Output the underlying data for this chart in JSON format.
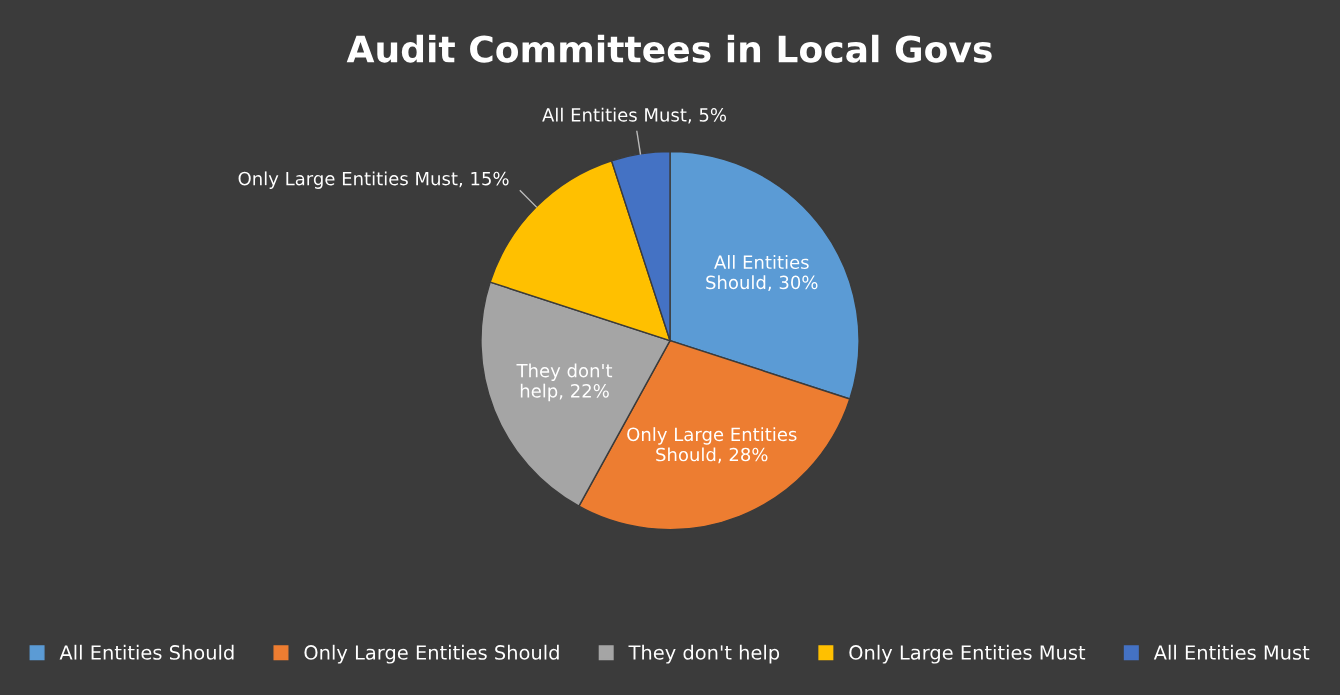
{
  "chart_data": {
    "type": "pie",
    "title": "Audit Committees in Local Govs",
    "categories": [
      "All Entities Should",
      "Only Large Entities Should",
      "They don't help",
      "Only Large Entities Must",
      "All Entities Must"
    ],
    "values": [
      30,
      28,
      22,
      15,
      5
    ],
    "value_labels": [
      ", 30%",
      ", 28%",
      ", 22%",
      ", 15%",
      ", 5%"
    ],
    "colors": [
      "#5b9bd5",
      "#ed7d31",
      "#a5a5a5",
      "#ffc000",
      "#4472c4"
    ],
    "legend": "bottom"
  }
}
